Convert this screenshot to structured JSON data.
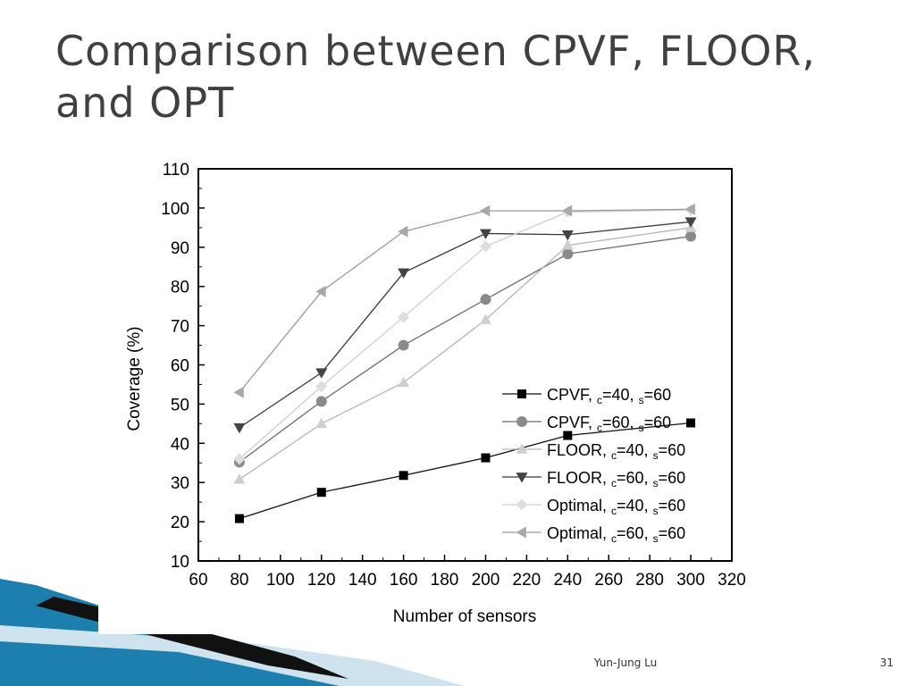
{
  "slide": {
    "title": "Comparison between CPVF, FLOOR, and OPT",
    "footer_author": "Yun-Jung Lu",
    "page_number": "31"
  },
  "colors": {
    "title": "#404040",
    "decor_blue": "#1d7fae",
    "decor_light": "#cfe3ef"
  },
  "chart_data": {
    "type": "line",
    "xlabel": "Number of sensors",
    "ylabel": "Coverage (%)",
    "xlim": [
      60,
      320
    ],
    "ylim": [
      10,
      110
    ],
    "xticks": [
      60,
      80,
      100,
      120,
      140,
      160,
      180,
      200,
      220,
      240,
      260,
      280,
      300,
      320
    ],
    "yticks": [
      10,
      20,
      30,
      40,
      50,
      60,
      70,
      80,
      90,
      100,
      110
    ],
    "legend_position": "bottom-right",
    "series": [
      {
        "label": "CPVF, ",
        "sub1": "c",
        "eq1": "=40, ",
        "sub2": "s",
        "eq2": "=60",
        "marker": "square",
        "color": "#111111",
        "marker_fill": "#000000",
        "x": [
          80,
          120,
          160,
          200,
          240,
          300
        ],
        "y": [
          20.8,
          27.5,
          31.8,
          36.3,
          42,
          45.2
        ]
      },
      {
        "label": "CPVF, ",
        "sub1": "c",
        "eq1": "=60, ",
        "sub2": "s",
        "eq2": "=60",
        "marker": "circle",
        "color": "#6e6e6e",
        "marker_fill": "#8a8a8a",
        "x": [
          80,
          120,
          160,
          200,
          240,
          300
        ],
        "y": [
          35.2,
          50.7,
          65,
          76.7,
          88.3,
          92.8
        ]
      },
      {
        "label": "FLOOR, ",
        "sub1": "c",
        "eq1": "=40, ",
        "sub2": "s",
        "eq2": "=60",
        "marker": "triangle-up",
        "color": "#b5b5b5",
        "marker_fill": "#cfcfcf",
        "x": [
          80,
          120,
          160,
          200,
          240,
          300
        ],
        "y": [
          30.8,
          45,
          55.5,
          71.5,
          90.5,
          95
        ]
      },
      {
        "label": "FLOOR, ",
        "sub1": "c",
        "eq1": "=60, ",
        "sub2": "s",
        "eq2": "=60",
        "marker": "triangle-down",
        "color": "#3a3a3a",
        "marker_fill": "#444444",
        "x": [
          80,
          120,
          160,
          200,
          240,
          300
        ],
        "y": [
          44,
          58,
          83.5,
          93.5,
          93.2,
          96.5
        ]
      },
      {
        "label": "Optimal, ",
        "sub1": "c",
        "eq1": "=40, ",
        "sub2": "s",
        "eq2": "=60",
        "marker": "diamond",
        "color": "#cfcfcf",
        "marker_fill": "#dddddd",
        "x": [
          80,
          120,
          160,
          200,
          240,
          300
        ],
        "y": [
          36,
          54.5,
          72.2,
          90.2,
          99,
          99.5
        ]
      },
      {
        "label": "Optimal, ",
        "sub1": "c",
        "eq1": "=60, ",
        "sub2": "s",
        "eq2": "=60",
        "marker": "triangle-left",
        "color": "#9a9a9a",
        "marker_fill": "#a8a8a8",
        "x": [
          80,
          120,
          160,
          200,
          240,
          300
        ],
        "y": [
          53,
          78.7,
          94,
          99.3,
          99.3,
          99.7
        ]
      }
    ]
  }
}
